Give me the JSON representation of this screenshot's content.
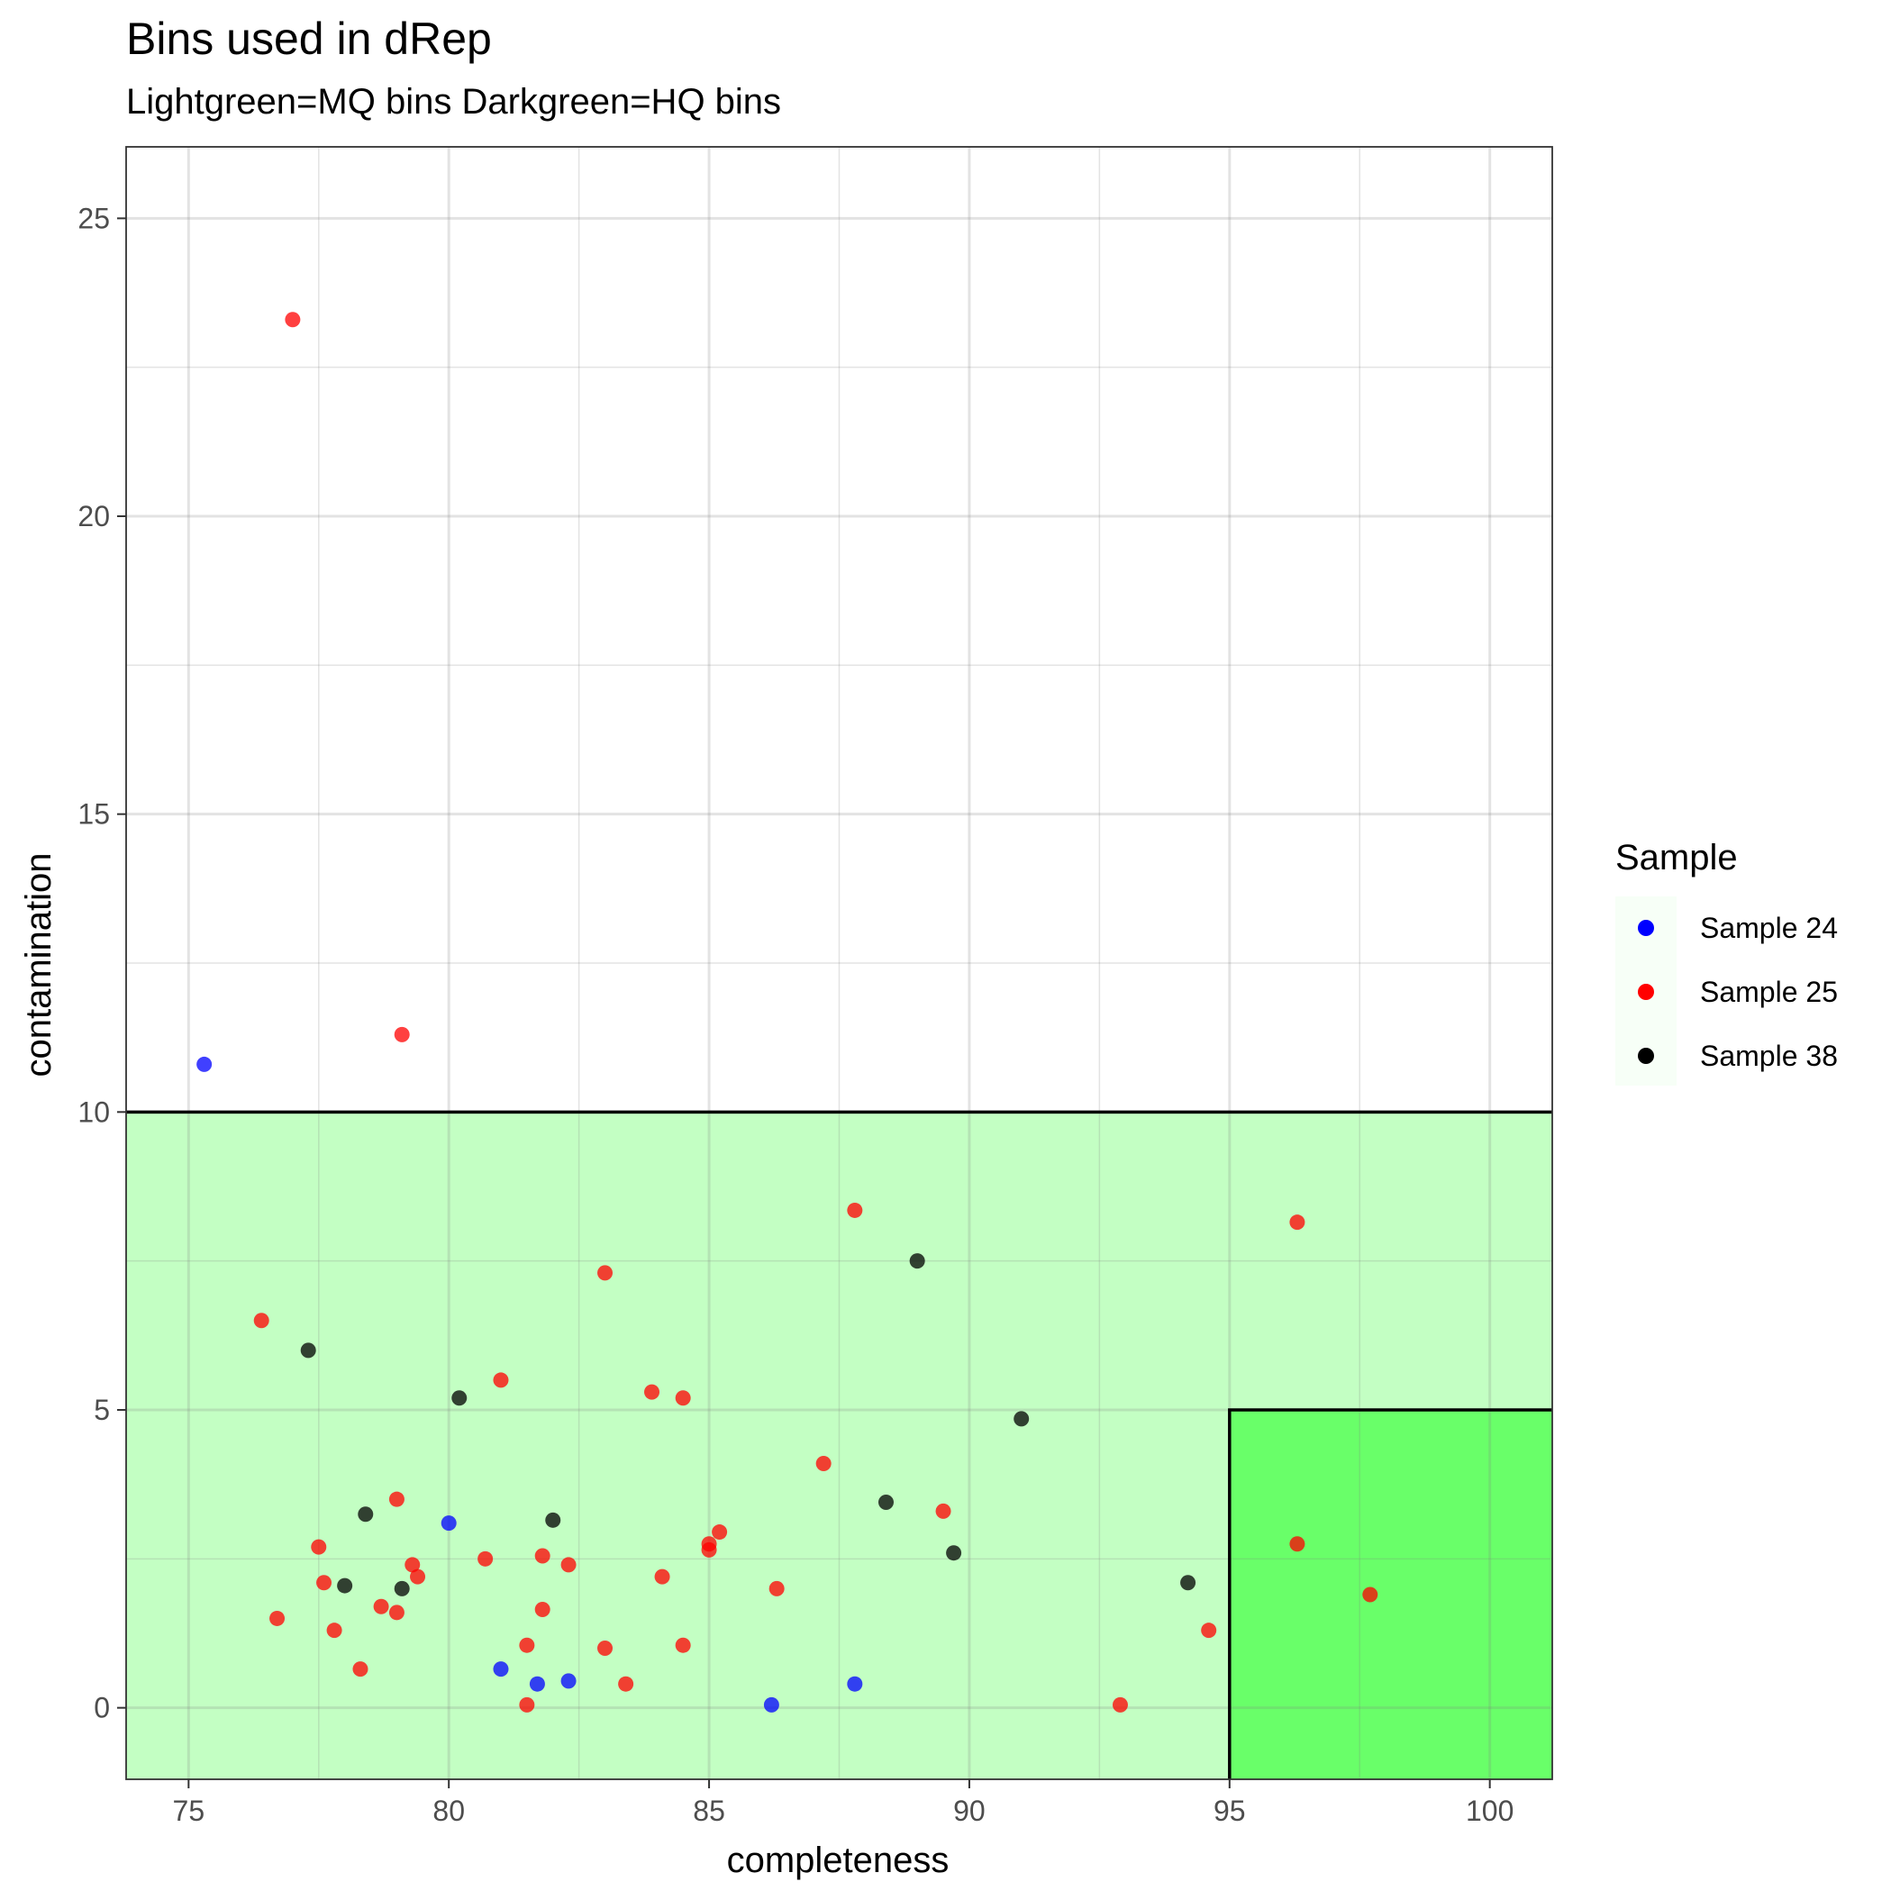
{
  "chart_data": {
    "type": "scatter",
    "title": "Bins used in dRep",
    "subtitle": "Lightgreen=MQ bins Darkgreen=HQ bins",
    "xlabel": "completeness",
    "ylabel": "contamination",
    "xlim": [
      73.8,
      101.2
    ],
    "ylim": [
      -1.2,
      26.2
    ],
    "x_ticks": [
      75,
      80,
      85,
      90,
      95,
      100
    ],
    "y_ticks": [
      0,
      5,
      10,
      15,
      20,
      25
    ],
    "grid": true,
    "legend": {
      "title": "Sample",
      "position": "right",
      "entries": [
        {
          "label": "Sample 24",
          "color": "#0000ff"
        },
        {
          "label": "Sample 25",
          "color": "#ff0000"
        },
        {
          "label": "Sample 38",
          "color": "#000000"
        }
      ]
    },
    "regions": [
      {
        "name": "MQ bins",
        "x": [
          73.8,
          101.2
        ],
        "y": [
          -1.2,
          10
        ],
        "color": "#c3ffc3"
      },
      {
        "name": "HQ bins",
        "x": [
          95,
          101.2
        ],
        "y": [
          -1.2,
          5
        ],
        "color": "#69ff69"
      }
    ],
    "series": [
      {
        "name": "Sample 24",
        "color": "#0000ff",
        "points": [
          [
            75.3,
            10.8
          ],
          [
            80.0,
            3.1
          ],
          [
            81.0,
            0.65
          ],
          [
            81.7,
            0.4
          ],
          [
            82.3,
            0.45
          ],
          [
            86.2,
            0.05
          ],
          [
            87.8,
            0.4
          ]
        ]
      },
      {
        "name": "Sample 25",
        "color": "#ff0000",
        "points": [
          [
            77.0,
            23.3
          ],
          [
            79.1,
            11.3
          ],
          [
            76.4,
            6.5
          ],
          [
            76.7,
            1.5
          ],
          [
            77.5,
            2.7
          ],
          [
            77.6,
            2.1
          ],
          [
            77.8,
            1.3
          ],
          [
            78.3,
            0.65
          ],
          [
            78.7,
            1.7
          ],
          [
            79.0,
            3.5
          ],
          [
            79.0,
            1.6
          ],
          [
            79.3,
            2.4
          ],
          [
            79.4,
            2.2
          ],
          [
            80.7,
            2.5
          ],
          [
            81.0,
            5.5
          ],
          [
            81.5,
            1.05
          ],
          [
            81.5,
            0.05
          ],
          [
            81.8,
            2.55
          ],
          [
            81.8,
            1.65
          ],
          [
            82.3,
            2.4
          ],
          [
            83.0,
            1.0
          ],
          [
            83.0,
            7.3
          ],
          [
            83.4,
            0.4
          ],
          [
            83.9,
            5.3
          ],
          [
            84.1,
            2.2
          ],
          [
            84.5,
            5.2
          ],
          [
            84.5,
            1.05
          ],
          [
            85.0,
            2.65
          ],
          [
            85.0,
            2.75
          ],
          [
            85.2,
            2.95
          ],
          [
            86.3,
            2.0
          ],
          [
            87.2,
            4.1
          ],
          [
            87.8,
            8.35
          ],
          [
            89.5,
            3.3
          ],
          [
            92.9,
            0.05
          ],
          [
            94.6,
            1.3
          ],
          [
            96.3,
            8.15
          ],
          [
            96.3,
            2.75
          ],
          [
            97.7,
            1.9
          ]
        ]
      },
      {
        "name": "Sample 38",
        "color": "#000000",
        "points": [
          [
            77.3,
            6.0
          ],
          [
            78.0,
            2.05
          ],
          [
            78.4,
            3.25
          ],
          [
            79.1,
            2.0
          ],
          [
            80.2,
            5.2
          ],
          [
            82.0,
            3.15
          ],
          [
            88.4,
            3.45
          ],
          [
            89.0,
            7.5
          ],
          [
            89.7,
            2.6
          ],
          [
            91.0,
            4.85
          ],
          [
            94.2,
            2.1
          ]
        ]
      }
    ]
  }
}
